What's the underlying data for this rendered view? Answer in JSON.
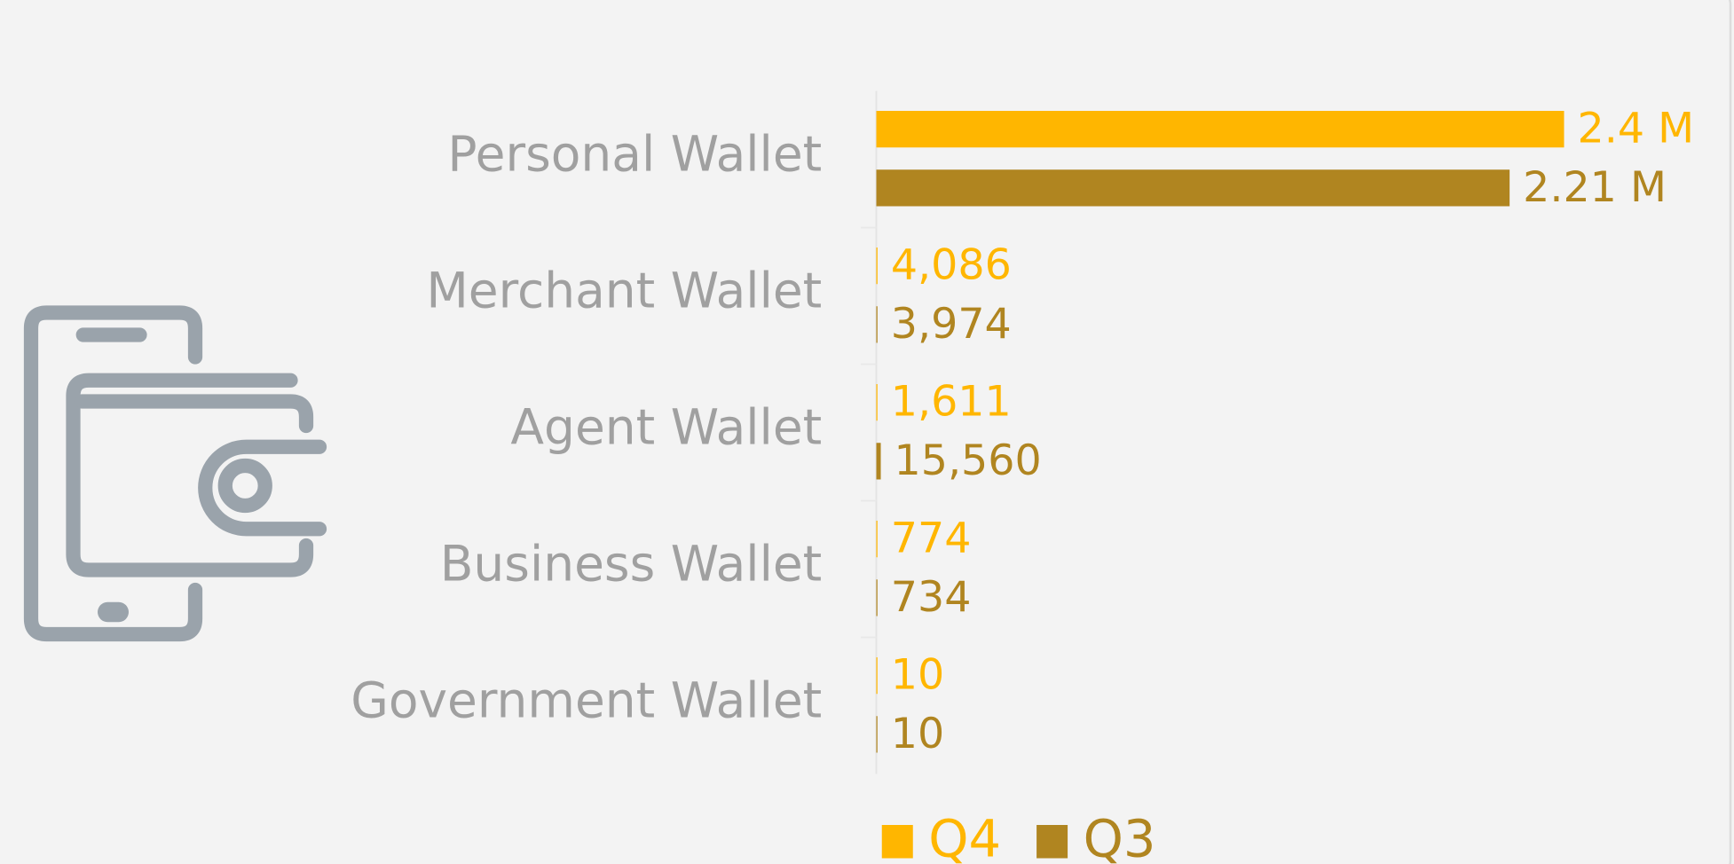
{
  "chart_data": {
    "type": "hbar",
    "categories": [
      "Personal Wallet",
      "Merchant Wallet",
      "Agent Wallet",
      "Business Wallet",
      "Government Wallet"
    ],
    "series": [
      {
        "name": "Q4",
        "color": "#ffb600",
        "values": [
          2400000,
          4086,
          1611,
          774,
          10
        ],
        "value_labels": [
          "2.4 M",
          "4,086",
          "1,611",
          "774",
          "10"
        ]
      },
      {
        "name": "Q3",
        "color": "#b08520",
        "values": [
          2210000,
          3974,
          15560,
          734,
          10
        ],
        "value_labels": [
          "2.21 M",
          "3,974",
          "15,560",
          "734",
          "10"
        ]
      }
    ],
    "legend": "bottom"
  }
}
